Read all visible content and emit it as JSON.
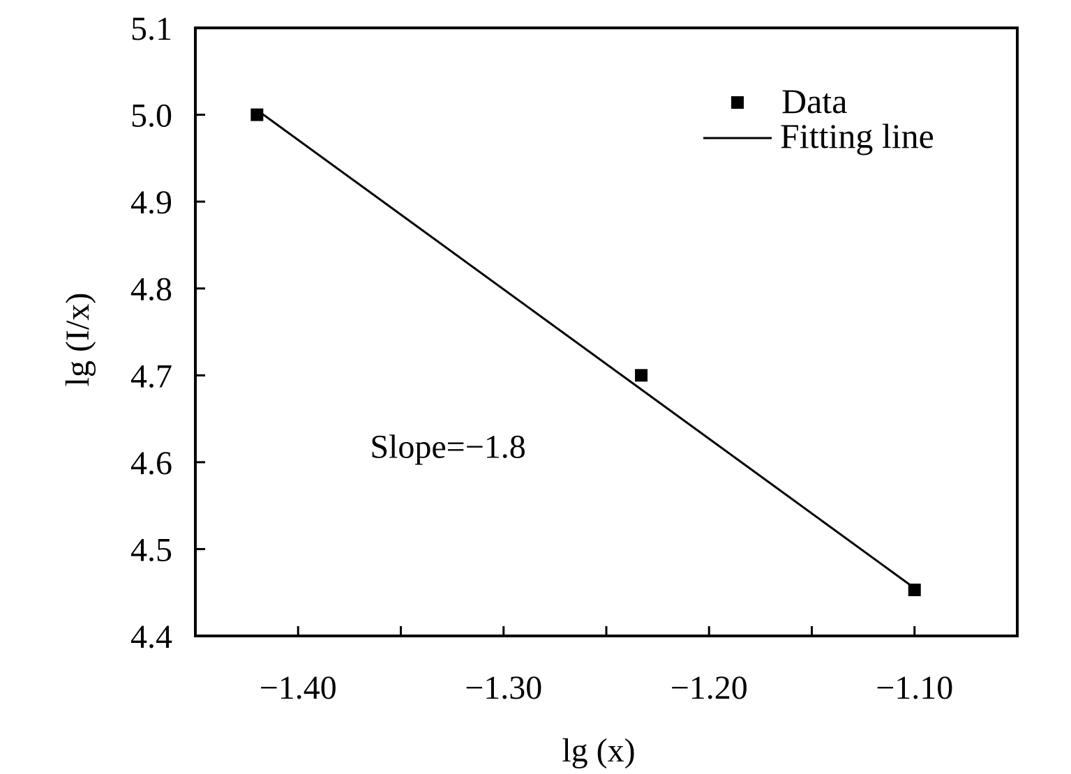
{
  "chart_data": {
    "type": "scatter",
    "xlabel": "lg (x)",
    "ylabel": "lg (I/x)",
    "xlim": [
      -1.45,
      -1.05
    ],
    "ylim": [
      4.4,
      5.1
    ],
    "xticks": [
      -1.45,
      -1.4,
      -1.35,
      -1.3,
      -1.25,
      -1.2,
      -1.15,
      -1.1,
      -1.05
    ],
    "xtick_labels": [
      {
        "value": -1.4,
        "label": "−1.40"
      },
      {
        "value": -1.3,
        "label": "−1.30"
      },
      {
        "value": -1.2,
        "label": "−1.20"
      },
      {
        "value": -1.1,
        "label": "−1.10"
      }
    ],
    "yticks": [
      {
        "value": 4.4,
        "label": "4.4"
      },
      {
        "value": 4.5,
        "label": "4.5"
      },
      {
        "value": 4.6,
        "label": "4.6"
      },
      {
        "value": 4.7,
        "label": "4.7"
      },
      {
        "value": 4.8,
        "label": "4.8"
      },
      {
        "value": 4.9,
        "label": "4.9"
      },
      {
        "value": 5.0,
        "label": "5.0"
      },
      {
        "value": 5.1,
        "label": "5.1"
      }
    ],
    "series": [
      {
        "name": "Data",
        "kind": "scatter",
        "marker": "square",
        "color": "#000000",
        "x": [
          -1.42,
          -1.233,
          -1.1
        ],
        "y": [
          5.0,
          4.7,
          4.453
        ]
      },
      {
        "name": "Fitting line",
        "kind": "line",
        "color": "#000000",
        "x": [
          -1.418,
          -1.1
        ],
        "y": [
          5.002,
          4.455
        ]
      }
    ],
    "annotations": [
      {
        "text": "Slope=−1.8",
        "x": -1.365,
        "y": 4.605
      }
    ],
    "legend": {
      "placement": "top-right"
    },
    "grid": false
  }
}
